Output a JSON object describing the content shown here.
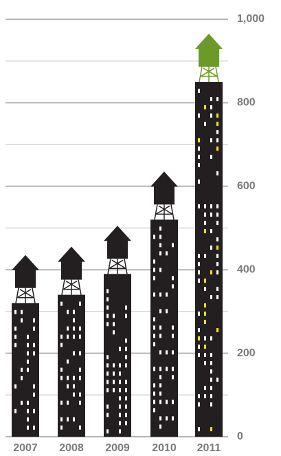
{
  "chart_data": {
    "type": "bar",
    "categories": [
      "2007",
      "2008",
      "2009",
      "2010",
      "2011"
    ],
    "values": [
      320,
      340,
      390,
      520,
      850
    ],
    "color": "#231f20",
    "tower_colors": [
      "#231f20",
      "#231f20",
      "#231f20",
      "#231f20",
      "#6b9a2b"
    ],
    "ylim": [
      0,
      1000
    ],
    "yticks": [
      0,
      200,
      400,
      600,
      800,
      {
        "value": 1000,
        "label": "1,000"
      }
    ],
    "minor_yticks": [
      100,
      300,
      500,
      700,
      900
    ],
    "grid": true
  }
}
